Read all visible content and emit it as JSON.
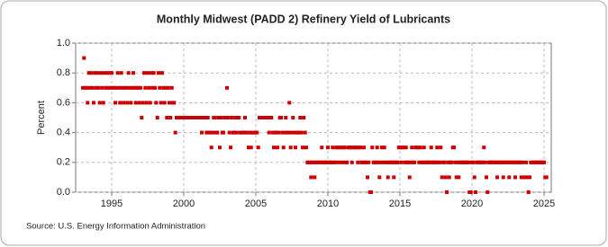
{
  "chart_data": {
    "type": "scatter",
    "title": "Monthly Midwest (PADD 2) Refinery Yield of Lubricants",
    "y_label": "Percent",
    "source": "Source: U.S. Energy Information Administration",
    "color": "#cc0000",
    "grid": true,
    "xlim": [
      1992.5,
      2025.5
    ],
    "xticks": [
      1995,
      2000,
      2005,
      2010,
      2015,
      2020,
      2025
    ],
    "ylim": [
      0,
      1
    ],
    "yticks": [
      {
        "value": 0,
        "label": "0.0"
      },
      {
        "value": 0.2,
        "label": "0.2"
      },
      {
        "value": 0.4,
        "label": "0.4"
      },
      {
        "value": 0.6,
        "label": "0.6"
      },
      {
        "value": 0.8,
        "label": "0.8"
      },
      {
        "value": 1,
        "label": "1.0"
      }
    ],
    "x": [
      1993,
      1993.08,
      1993.17,
      1993.25,
      1993.33,
      1993.42,
      1993.5,
      1993.58,
      1993.67,
      1993.75,
      1993.83,
      1993.92,
      1994,
      1994.08,
      1994.17,
      1994.25,
      1994.33,
      1994.42,
      1994.5,
      1994.58,
      1994.67,
      1994.75,
      1994.83,
      1994.92,
      1995,
      1995.08,
      1995.17,
      1995.25,
      1995.33,
      1995.42,
      1995.5,
      1995.58,
      1995.67,
      1995.75,
      1995.83,
      1995.92,
      1996,
      1996.08,
      1996.17,
      1996.25,
      1996.33,
      1996.42,
      1996.5,
      1996.58,
      1996.67,
      1996.75,
      1996.83,
      1996.92,
      1997,
      1997.08,
      1997.17,
      1997.25,
      1997.33,
      1997.42,
      1997.5,
      1997.58,
      1997.67,
      1997.75,
      1997.83,
      1997.92,
      1998,
      1998.08,
      1998.17,
      1998.25,
      1998.33,
      1998.42,
      1998.5,
      1998.58,
      1998.67,
      1998.75,
      1998.83,
      1998.92,
      1999,
      1999.08,
      1999.17,
      1999.25,
      1999.33,
      1999.42,
      1999.5,
      1999.58,
      1999.67,
      1999.75,
      1999.83,
      1999.92,
      2000,
      2000.08,
      2000.17,
      2000.25,
      2000.33,
      2000.42,
      2000.5,
      2000.58,
      2000.67,
      2000.75,
      2000.83,
      2000.92,
      2001,
      2001.08,
      2001.17,
      2001.25,
      2001.33,
      2001.42,
      2001.5,
      2001.58,
      2001.67,
      2001.75,
      2001.83,
      2001.92,
      2002,
      2002.08,
      2002.17,
      2002.25,
      2002.33,
      2002.42,
      2002.5,
      2002.58,
      2002.67,
      2002.75,
      2002.83,
      2002.92,
      2003,
      2003.08,
      2003.17,
      2003.25,
      2003.33,
      2003.42,
      2003.5,
      2003.58,
      2003.67,
      2003.75,
      2003.83,
      2003.92,
      2004,
      2004.08,
      2004.17,
      2004.25,
      2004.33,
      2004.42,
      2004.5,
      2004.58,
      2004.67,
      2004.75,
      2004.83,
      2004.92,
      2005,
      2005.08,
      2005.17,
      2005.25,
      2005.33,
      2005.42,
      2005.5,
      2005.58,
      2005.67,
      2005.75,
      2005.83,
      2005.92,
      2006,
      2006.08,
      2006.17,
      2006.25,
      2006.33,
      2006.42,
      2006.5,
      2006.58,
      2006.67,
      2006.75,
      2006.83,
      2006.92,
      2007,
      2007.08,
      2007.17,
      2007.25,
      2007.33,
      2007.42,
      2007.5,
      2007.58,
      2007.67,
      2007.75,
      2007.83,
      2007.92,
      2008,
      2008.08,
      2008.17,
      2008.25,
      2008.33,
      2008.42,
      2008.5,
      2008.58,
      2008.67,
      2008.75,
      2008.83,
      2008.92,
      2009,
      2009.08,
      2009.17,
      2009.25,
      2009.33,
      2009.42,
      2009.5,
      2009.58,
      2009.67,
      2009.75,
      2009.83,
      2009.92,
      2010,
      2010.08,
      2010.17,
      2010.25,
      2010.33,
      2010.42,
      2010.5,
      2010.58,
      2010.67,
      2010.75,
      2010.83,
      2010.92,
      2011,
      2011.08,
      2011.17,
      2011.25,
      2011.33,
      2011.42,
      2011.5,
      2011.58,
      2011.67,
      2011.75,
      2011.83,
      2011.92,
      2012,
      2012.08,
      2012.17,
      2012.25,
      2012.33,
      2012.42,
      2012.5,
      2012.58,
      2012.67,
      2012.75,
      2012.83,
      2012.92,
      2013,
      2013.08,
      2013.17,
      2013.25,
      2013.33,
      2013.42,
      2013.5,
      2013.58,
      2013.67,
      2013.75,
      2013.83,
      2013.92,
      2014,
      2014.08,
      2014.17,
      2014.25,
      2014.33,
      2014.42,
      2014.5,
      2014.58,
      2014.67,
      2014.75,
      2014.83,
      2014.92,
      2015,
      2015.08,
      2015.17,
      2015.25,
      2015.33,
      2015.42,
      2015.5,
      2015.58,
      2015.67,
      2015.75,
      2015.83,
      2015.92,
      2016,
      2016.08,
      2016.17,
      2016.25,
      2016.33,
      2016.42,
      2016.5,
      2016.58,
      2016.67,
      2016.75,
      2016.83,
      2016.92,
      2017,
      2017.08,
      2017.17,
      2017.25,
      2017.33,
      2017.42,
      2017.5,
      2017.58,
      2017.67,
      2017.75,
      2017.83,
      2017.92,
      2018,
      2018.08,
      2018.17,
      2018.25,
      2018.33,
      2018.42,
      2018.5,
      2018.58,
      2018.67,
      2018.75,
      2018.83,
      2018.92,
      2019,
      2019.08,
      2019.17,
      2019.25,
      2019.33,
      2019.42,
      2019.5,
      2019.58,
      2019.67,
      2019.75,
      2019.83,
      2019.92,
      2020,
      2020.08,
      2020.17,
      2020.25,
      2020.33,
      2020.42,
      2020.5,
      2020.58,
      2020.67,
      2020.75,
      2020.83,
      2020.92,
      2021,
      2021.08,
      2021.17,
      2021.25,
      2021.33,
      2021.42,
      2021.5,
      2021.58,
      2021.67,
      2021.75,
      2021.83,
      2021.92,
      2022,
      2022.08,
      2022.17,
      2022.25,
      2022.33,
      2022.42,
      2022.5,
      2022.58,
      2022.67,
      2022.75,
      2022.83,
      2022.92,
      2023,
      2023.08,
      2023.17,
      2023.25,
      2023.33,
      2023.42,
      2023.5,
      2023.58,
      2023.67,
      2023.75,
      2023.83,
      2023.92,
      2024,
      2024.08,
      2024.17,
      2024.25,
      2024.33,
      2024.42,
      2024.5,
      2024.58,
      2024.67,
      2024.75,
      2024.83,
      2024.92,
      2025,
      2025.08,
      2025.17
    ],
    "values": [
      0.7,
      0.9,
      0.7,
      0.7,
      0.6,
      0.8,
      0.7,
      0.8,
      0.7,
      0.6,
      0.8,
      0.7,
      0.8,
      0.7,
      0.6,
      0.8,
      0.7,
      0.6,
      0.8,
      0.7,
      0.8,
      0.7,
      0.8,
      0.7,
      0.8,
      0.7,
      0.7,
      0.6,
      0.7,
      0.8,
      0.7,
      0.6,
      0.8,
      0.7,
      0.6,
      0.7,
      0.7,
      0.6,
      0.8,
      0.7,
      0.6,
      0.7,
      0.8,
      0.7,
      0.6,
      0.7,
      0.7,
      0.6,
      0.7,
      0.5,
      0.6,
      0.8,
      0.7,
      0.6,
      0.8,
      0.7,
      0.6,
      0.8,
      0.7,
      0.8,
      0.7,
      0.6,
      0.5,
      0.8,
      0.7,
      0.6,
      0.8,
      0.7,
      0.6,
      0.7,
      0.5,
      0.7,
      0.6,
      0.5,
      0.7,
      0.6,
      0.6,
      0.4,
      0.5,
      0.5,
      0.5,
      0.5,
      0.5,
      0.5,
      0.5,
      0.5,
      0.5,
      0.5,
      0.5,
      0.5,
      0.5,
      0.5,
      0.5,
      0.5,
      0.5,
      0.5,
      0.5,
      0.5,
      0.5,
      0.4,
      0.5,
      0.5,
      0.5,
      0.4,
      0.5,
      0.4,
      0.4,
      0.3,
      0.4,
      0.5,
      0.5,
      0.4,
      0.4,
      0.5,
      0.3,
      0.5,
      0.4,
      0.4,
      0.5,
      0.5,
      0.7,
      0.5,
      0.4,
      0.3,
      0.5,
      0.4,
      0.4,
      0.5,
      0.4,
      0.5,
      0.5,
      0.4,
      0.4,
      0.4,
      0.4,
      0.5,
      0.4,
      0.4,
      0.3,
      0.4,
      0.3,
      0.4,
      0.4,
      0.4,
      0.4,
      0.4,
      0.3,
      0.5,
      0.5,
      0.5,
      0.5,
      0.5,
      0.5,
      0.5,
      0.5,
      0.4,
      0.5,
      0.5,
      0.4,
      0.3,
      0.4,
      0.4,
      0.3,
      0.4,
      0.5,
      0.5,
      0.4,
      0.3,
      0.4,
      0.5,
      0.4,
      0.4,
      0.6,
      0.3,
      0.4,
      0.5,
      0.4,
      0.3,
      0.4,
      0.4,
      0.4,
      0.5,
      0.4,
      0.3,
      0.5,
      0.4,
      0.3,
      0.2,
      0.2,
      0.2,
      0.1,
      0.2,
      0.2,
      0.1,
      0.2,
      0.2,
      0.2,
      0.2,
      0.2,
      0.3,
      0.2,
      0.2,
      0.2,
      0.2,
      0.3,
      0.2,
      0.2,
      0.2,
      0.3,
      0.2,
      0.2,
      0.3,
      0.3,
      0.2,
      0.3,
      0.3,
      0.2,
      0.3,
      0.3,
      0.2,
      0.2,
      0.3,
      0.3,
      0.3,
      0.2,
      0.3,
      0.3,
      0.3,
      0.3,
      0.2,
      0.3,
      0.3,
      0.2,
      0.2,
      0.3,
      0.2,
      0.2,
      0.1,
      0.2,
      0,
      0,
      0.3,
      0.2,
      0.2,
      0.2,
      0.3,
      0.2,
      0.1,
      0.2,
      0.3,
      0.2,
      0.3,
      0.2,
      0.2,
      0.1,
      0.2,
      0.2,
      0.2,
      0.2,
      0.1,
      0.2,
      0.2,
      0.2,
      0.3,
      0.3,
      0.2,
      0.3,
      0.3,
      0.2,
      0.3,
      0.2,
      0.2,
      0.1,
      0.2,
      0.3,
      0.2,
      0.2,
      0.3,
      0.3,
      0.3,
      0.2,
      0.3,
      0.2,
      0.2,
      0.3,
      0.2,
      0.2,
      0.2,
      0.2,
      0.2,
      0.3,
      0.2,
      0.2,
      0.2,
      0.2,
      0.3,
      0.2,
      0.2,
      0.3,
      0.1,
      0.2,
      0.2,
      0.1,
      0,
      0.2,
      0.1,
      0.2,
      0.2,
      0.3,
      0.3,
      0.2,
      0.1,
      0.2,
      0.1,
      0.2,
      0.2,
      0.2,
      0.2,
      0.2,
      0.2,
      0.2,
      0.2,
      0,
      0,
      0.2,
      0.2,
      0.1,
      0,
      0.2,
      0.2,
      0.2,
      0.2,
      0.2,
      0.2,
      0.3,
      0.2,
      0.1,
      0,
      0.2,
      0.2,
      0.2,
      0.2,
      0.2,
      0.2,
      0.2,
      0.1,
      0.2,
      0.2,
      0.2,
      0.2,
      0.1,
      0.2,
      0.2,
      0.2,
      0.2,
      0.1,
      0.2,
      0.2,
      0.2,
      0.2,
      0.1,
      0.2,
      0.2,
      0.2,
      0.2,
      0.1,
      0.2,
      0.1,
      0.1,
      0.2,
      0.1,
      0,
      0.1,
      0.2,
      0.2,
      0.2,
      0.2,
      0.2,
      0.2,
      0.2,
      0.2,
      0.2,
      0.2,
      0.2,
      0.2,
      0.1,
      0.1
    ]
  }
}
